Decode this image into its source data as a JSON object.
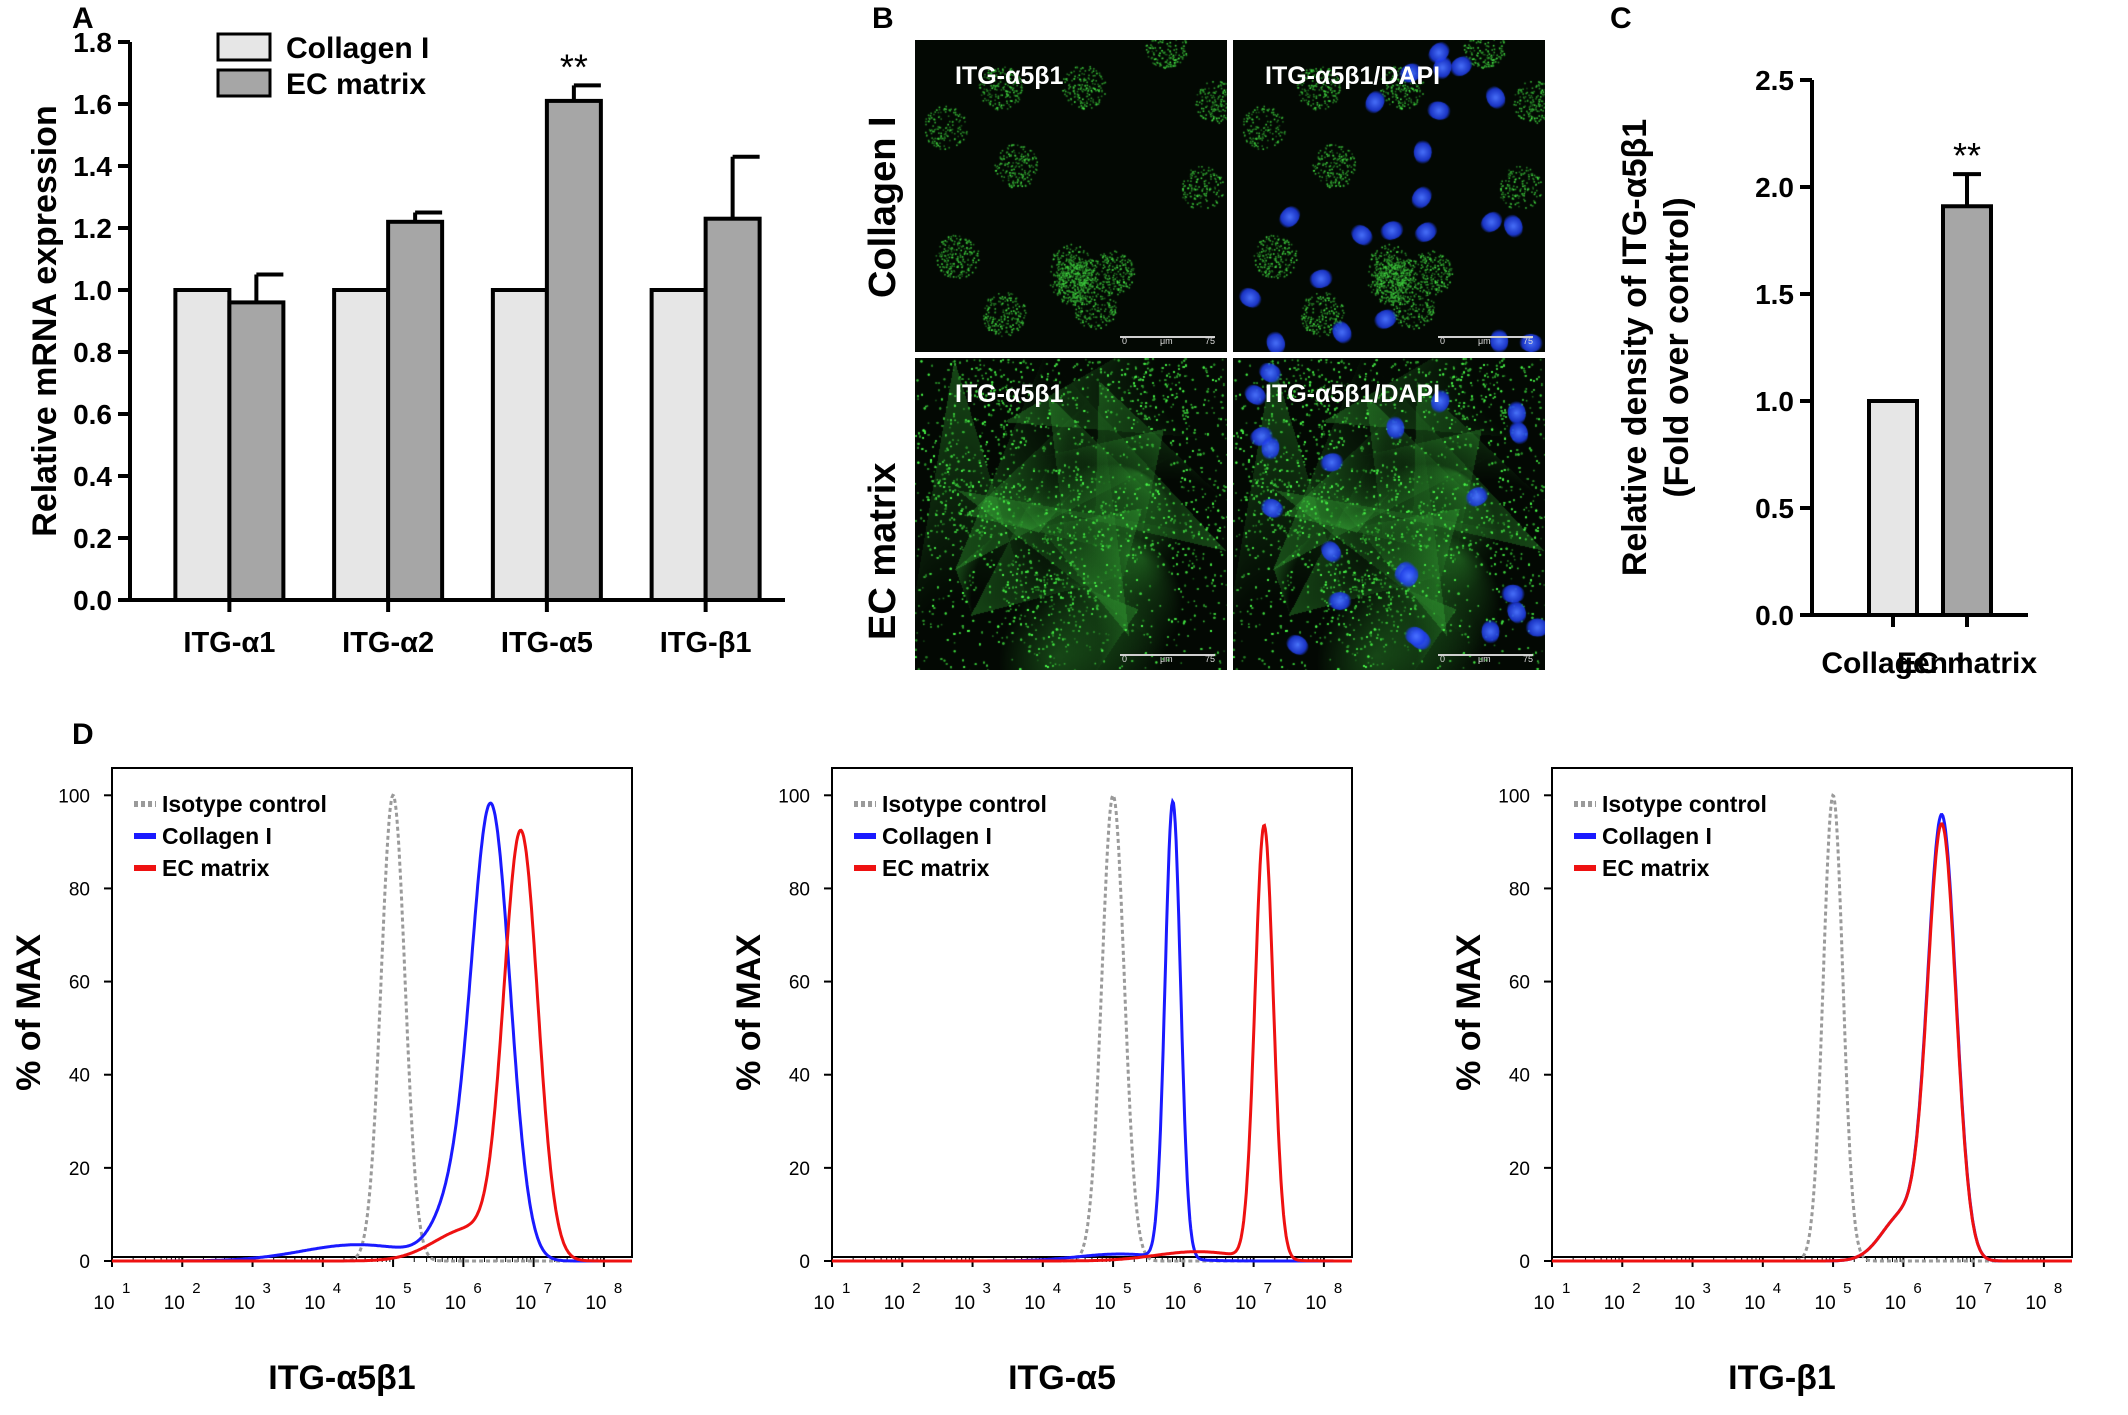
{
  "panels": {
    "A": "A",
    "B": "B",
    "C": "C",
    "D": "D"
  },
  "chart_data": [
    {
      "id": "A",
      "type": "bar",
      "ylabel": "Relative mRNA expression",
      "ylim": [
        0,
        1.8
      ],
      "yticks": [
        0.0,
        0.2,
        0.4,
        0.6,
        0.8,
        1.0,
        1.2,
        1.4,
        1.6,
        1.8
      ],
      "ytick_labels": [
        "0.0",
        "0.2",
        "0.4",
        "0.6",
        "0.8",
        "1.0",
        "1.2",
        "1.4",
        "1.6",
        "1.8"
      ],
      "categories": [
        "ITG-α1",
        "ITG-α2",
        "ITG-α5",
        "ITG-β1"
      ],
      "series": [
        {
          "name": "Collagen I",
          "color": "#e6e6e6",
          "values": [
            1.0,
            1.0,
            1.0,
            1.0
          ],
          "errors": [
            0,
            0,
            0,
            0
          ]
        },
        {
          "name": "EC matrix",
          "color": "#a6a6a6",
          "values": [
            0.96,
            1.22,
            1.61,
            1.23
          ],
          "errors": [
            0.09,
            0.03,
            0.05,
            0.2
          ]
        }
      ],
      "significance": [
        {
          "category": "ITG-α5",
          "series": "EC matrix",
          "label": "**"
        }
      ],
      "legend": "top-left"
    },
    {
      "id": "C",
      "type": "bar",
      "ylabel": "Relative density of ITG-α5β1",
      "ylabel2": "(Fold over control)",
      "ylim": [
        0,
        2.5
      ],
      "yticks": [
        0.0,
        0.5,
        1.0,
        1.5,
        2.0,
        2.5
      ],
      "ytick_labels": [
        "0.0",
        "0.5",
        "1.0",
        "1.5",
        "2.0",
        "2.5"
      ],
      "categories": [
        "Collagen I",
        "EC matrix"
      ],
      "values": [
        1.0,
        1.91
      ],
      "errors": [
        0,
        0.15
      ],
      "colors": [
        "#e6e6e6",
        "#a6a6a6"
      ],
      "significance": [
        {
          "category": "EC matrix",
          "label": "**"
        }
      ]
    },
    {
      "id": "D1",
      "type": "line",
      "xlabel": "ITG-α5β1",
      "ylabel": "% of MAX",
      "xscale": "log",
      "xlim": [
        1,
        8.4
      ],
      "ylim": [
        0,
        105
      ],
      "yticks": [
        0,
        20,
        40,
        60,
        80,
        100
      ],
      "ytick_labels": [
        "0",
        "20",
        "40",
        "60",
        "80",
        "100"
      ],
      "xticks": [
        1,
        2,
        3,
        4,
        5,
        6,
        7,
        8
      ],
      "xtick_labels": [
        "10",
        "10",
        "10",
        "10",
        "10",
        "10",
        "10",
        "10"
      ],
      "xtick_exponents": [
        "1",
        "2",
        "3",
        "4",
        "5",
        "6",
        "7",
        "8"
      ],
      "legend": "top-left",
      "series": [
        {
          "name": "Isotype control",
          "color": "#9a9a9a",
          "dash": true,
          "peaks": [
            {
              "mu": 5.0,
              "sigma": 0.17,
              "amp": 100
            }
          ],
          "tails": []
        },
        {
          "name": "Collagen I",
          "color": "#1a1aff",
          "dash": false,
          "peaks": [
            {
              "mu": 6.4,
              "sigma": 0.27,
              "amp": 95
            }
          ],
          "tails": [
            {
              "mu": 4.5,
              "sigma": 0.8,
              "amp": 3.5
            },
            {
              "mu": 5.9,
              "sigma": 0.3,
              "amp": 12
            }
          ]
        },
        {
          "name": "EC matrix",
          "color": "#ee1111",
          "dash": false,
          "peaks": [
            {
              "mu": 6.82,
              "sigma": 0.24,
              "amp": 90
            }
          ],
          "tails": [
            {
              "mu": 6.1,
              "sigma": 0.5,
              "amp": 7
            }
          ]
        }
      ]
    },
    {
      "id": "D2",
      "type": "line",
      "xlabel": "ITG-α5",
      "ylabel": "% of MAX",
      "xscale": "log",
      "xlim": [
        1,
        8.4
      ],
      "ylim": [
        0,
        105
      ],
      "yticks": [
        0,
        20,
        40,
        60,
        80,
        100
      ],
      "ytick_labels": [
        "0",
        "20",
        "40",
        "60",
        "80",
        "100"
      ],
      "xticks": [
        1,
        2,
        3,
        4,
        5,
        6,
        7,
        8
      ],
      "xtick_labels": [
        "10",
        "10",
        "10",
        "10",
        "10",
        "10",
        "10",
        "10"
      ],
      "xtick_exponents": [
        "1",
        "2",
        "3",
        "4",
        "5",
        "6",
        "7",
        "8"
      ],
      "legend": "top-left",
      "series": [
        {
          "name": "Isotype control",
          "color": "#9a9a9a",
          "dash": true,
          "peaks": [
            {
              "mu": 5.0,
              "sigma": 0.16,
              "amp": 100
            }
          ],
          "tails": []
        },
        {
          "name": "Collagen I",
          "color": "#1a1aff",
          "dash": false,
          "peaks": [
            {
              "mu": 5.85,
              "sigma": 0.11,
              "amp": 98
            }
          ],
          "tails": [
            {
              "mu": 5.1,
              "sigma": 0.6,
              "amp": 1.5
            }
          ]
        },
        {
          "name": "EC matrix",
          "color": "#ee1111",
          "dash": false,
          "peaks": [
            {
              "mu": 7.15,
              "sigma": 0.13,
              "amp": 93
            }
          ],
          "tails": [
            {
              "mu": 6.2,
              "sigma": 0.6,
              "amp": 2
            }
          ]
        }
      ]
    },
    {
      "id": "D3",
      "type": "line",
      "xlabel": "ITG-β1",
      "ylabel": "% of MAX",
      "xscale": "log",
      "xlim": [
        1,
        8.4
      ],
      "ylim": [
        0,
        105
      ],
      "yticks": [
        0,
        20,
        40,
        60,
        80,
        100
      ],
      "ytick_labels": [
        "0",
        "20",
        "40",
        "60",
        "80",
        "100"
      ],
      "xticks": [
        1,
        2,
        3,
        4,
        5,
        6,
        7,
        8
      ],
      "xtick_labels": [
        "10",
        "10",
        "10",
        "10",
        "10",
        "10",
        "10",
        "10"
      ],
      "xtick_exponents": [
        "1",
        "2",
        "3",
        "4",
        "5",
        "6",
        "7",
        "8"
      ],
      "legend": "top-left",
      "series": [
        {
          "name": "Isotype control",
          "color": "#9a9a9a",
          "dash": true,
          "peaks": [
            {
              "mu": 5.0,
              "sigma": 0.14,
              "amp": 100
            }
          ],
          "tails": []
        },
        {
          "name": "Collagen I",
          "color": "#1a1aff",
          "dash": false,
          "peaks": [
            {
              "mu": 6.55,
              "sigma": 0.2,
              "amp": 94
            }
          ],
          "tails": [
            {
              "mu": 6.0,
              "sigma": 0.3,
              "amp": 10
            }
          ]
        },
        {
          "name": "EC matrix",
          "color": "#ee1111",
          "dash": false,
          "peaks": [
            {
              "mu": 6.55,
              "sigma": 0.2,
              "amp": 92
            }
          ],
          "tails": [
            {
              "mu": 6.0,
              "sigma": 0.3,
              "amp": 10
            }
          ]
        }
      ]
    }
  ],
  "micrographs": {
    "row_labels": [
      "Collagen I",
      "EC matrix"
    ],
    "cells": [
      {
        "label": "ITG-α5β1",
        "dapi": false,
        "intensity": "low"
      },
      {
        "label": "ITG-α5β1/DAPI",
        "dapi": true,
        "intensity": "low"
      },
      {
        "label": "ITG-α5β1",
        "dapi": false,
        "intensity": "high"
      },
      {
        "label": "ITG-α5β1/DAPI",
        "dapi": true,
        "intensity": "high"
      }
    ],
    "scale_bar": {
      "start": "0",
      "unit": "μm",
      "end": "75"
    },
    "colors": {
      "signal": "#33c433",
      "nuclei": "#2244ff",
      "background": "#030803"
    }
  }
}
